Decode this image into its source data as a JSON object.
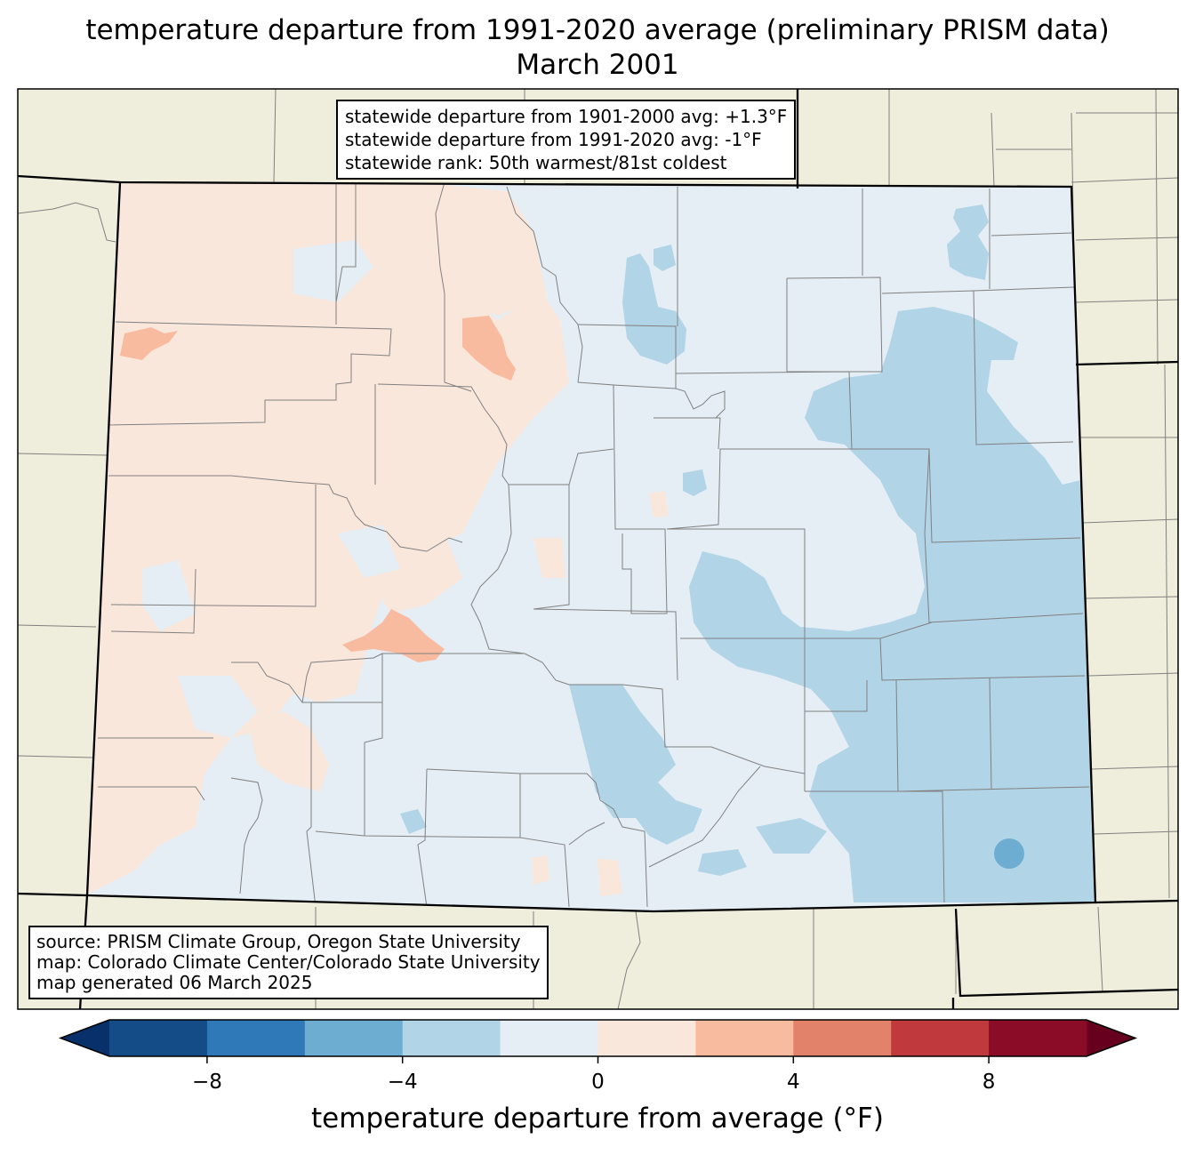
{
  "title": {
    "line1": "temperature departure from 1991-2020 average (preliminary PRISM data)",
    "line2": "March 2001"
  },
  "stats_box": {
    "lines": [
      "statewide departure from 1901-2000 avg: +1.3°F",
      "statewide departure from 1991-2020 avg: -1°F",
      "statewide rank: 50th warmest/81st coldest"
    ]
  },
  "source_box": {
    "lines": [
      "source: PRISM Climate Group, Oregon State University",
      "map: Colorado Climate Center/Colorado State University",
      "map generated 06 March 2025"
    ]
  },
  "colorbar": {
    "label": "temperature departure from average (°F)",
    "min": -10,
    "max": 10,
    "step": 2,
    "ticks": [
      "−8",
      "−4",
      "0",
      "4",
      "8"
    ],
    "tick_values": [
      -8,
      -4,
      0,
      4,
      8
    ],
    "under_color": "#08306b",
    "over_color": "#67001f",
    "colors": [
      "#144c87",
      "#3079b8",
      "#6cadd1",
      "#b2d4e7",
      "#e5eef5",
      "#fae7dc",
      "#f8bba0",
      "#e3826a",
      "#c03a3d",
      "#8b0c27"
    ]
  },
  "map": {
    "land_color": "#efeedc",
    "county_line_color": "#808080",
    "state_line_color": "#000000"
  }
}
